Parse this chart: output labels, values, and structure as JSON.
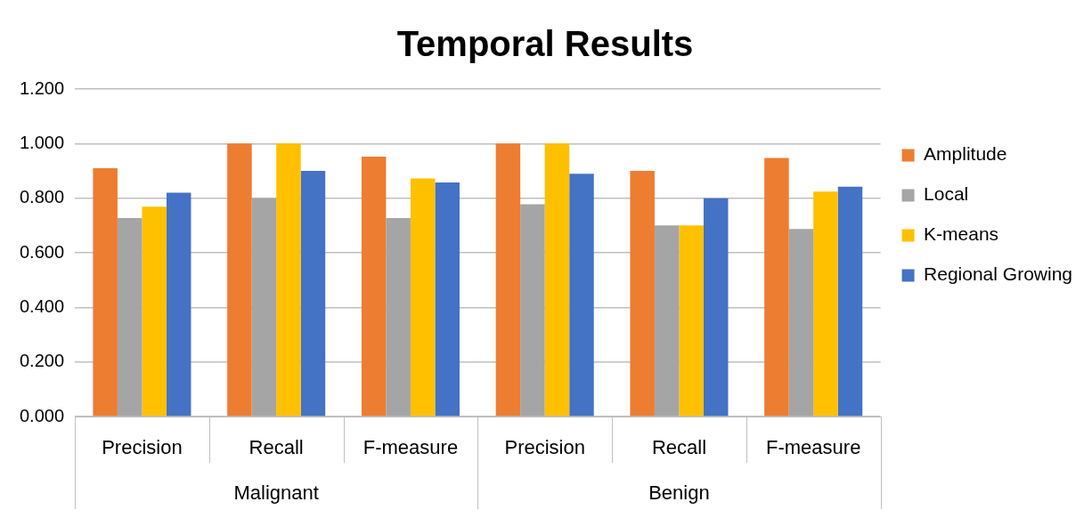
{
  "chart_data": {
    "type": "bar",
    "title": "Temporal Results",
    "categories": [
      "Precision",
      "Recall",
      "F-measure",
      "Precision",
      "Recall",
      "F-measure"
    ],
    "annotations": [
      "Malignant",
      "Benign"
    ],
    "series": [
      {
        "name": "Amplitude",
        "color": "#ed7d31",
        "values": [
          0.91,
          1.0,
          0.952,
          1.0,
          0.9,
          0.947
        ]
      },
      {
        "name": "Local",
        "color": "#a5a5a5",
        "values": [
          0.727,
          0.8,
          0.727,
          0.778,
          0.7,
          0.687
        ]
      },
      {
        "name": "K-means",
        "color": "#ffc000",
        "values": [
          0.769,
          1.0,
          0.872,
          1.0,
          0.7,
          0.824
        ]
      },
      {
        "name": "Regional Growing",
        "color": "#4472c4",
        "values": [
          0.82,
          0.9,
          0.858,
          0.889,
          0.8,
          0.842
        ]
      }
    ],
    "ylim": [
      0,
      1.2
    ],
    "yticks": [
      {
        "value": 0,
        "label": "0.000"
      },
      {
        "value": 0.2,
        "label": "0.200"
      },
      {
        "value": 0.4,
        "label": "0.400"
      },
      {
        "value": 0.6,
        "label": "0.600"
      },
      {
        "value": 0.8,
        "label": "0.800"
      },
      {
        "value": 1.0,
        "label": "1.000"
      },
      {
        "value": 1.2,
        "label": "1.200"
      }
    ],
    "grid": "y",
    "legend": "right"
  }
}
